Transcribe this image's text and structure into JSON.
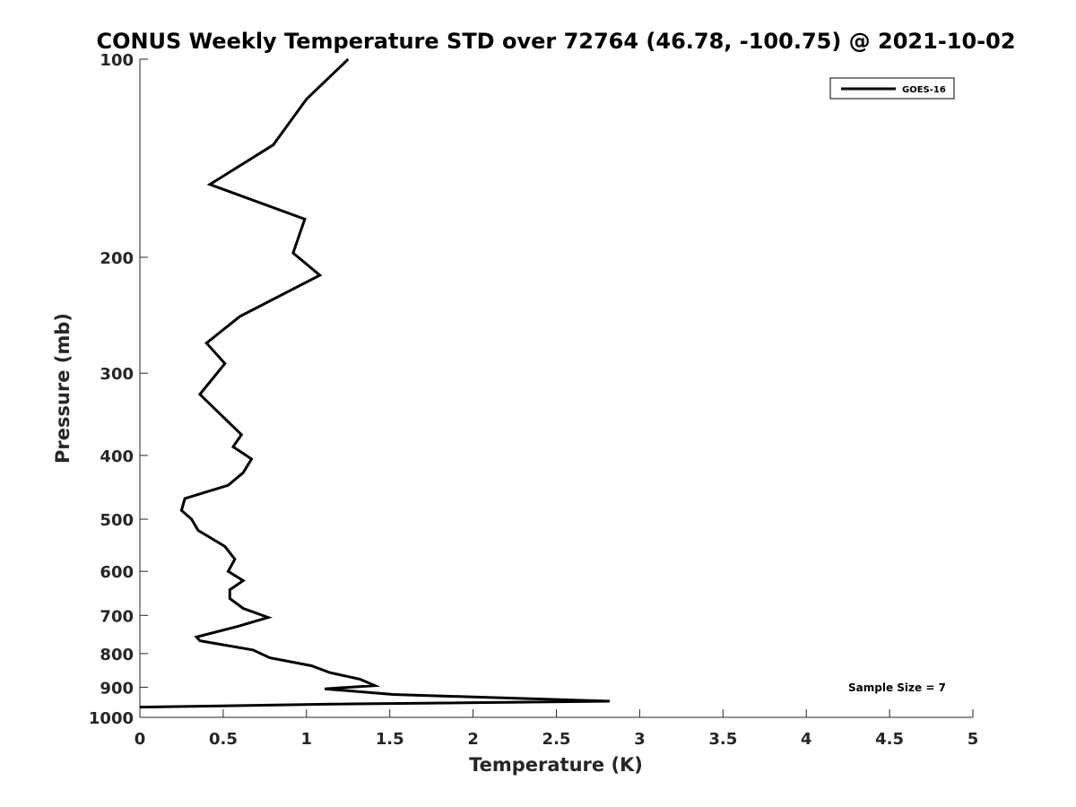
{
  "chart_data": {
    "type": "line",
    "title": "CONUS Weekly Temperature STD over 72764 (46.78, -100.75) @ 2021-10-02",
    "xlabel": "Temperature (K)",
    "ylabel": "Pressure (mb)",
    "xlim": [
      0,
      5
    ],
    "ylim": [
      100,
      1000
    ],
    "y_scale": "log",
    "y_reversed": true,
    "x_ticks": [
      "0",
      "0.5",
      "1",
      "1.5",
      "2",
      "2.5",
      "3",
      "3.5",
      "4",
      "4.5",
      "5"
    ],
    "x_tick_values": [
      0,
      0.5,
      1,
      1.5,
      2,
      2.5,
      3,
      3.5,
      4,
      4.5,
      5
    ],
    "y_ticks": [
      "100",
      "200",
      "300",
      "400",
      "500",
      "600",
      "700",
      "800",
      "900",
      "1000"
    ],
    "y_tick_values": [
      100,
      200,
      300,
      400,
      500,
      600,
      700,
      800,
      900,
      1000
    ],
    "grid": false,
    "legend_position": "top-right",
    "series": [
      {
        "name": "GOES-16",
        "color": "#000000",
        "x": [
          1.25,
          1.0,
          0.8,
          0.42,
          0.99,
          0.92,
          1.08,
          0.6,
          0.4,
          0.51,
          0.36,
          0.61,
          0.56,
          0.67,
          0.62,
          0.53,
          0.27,
          0.25,
          0.31,
          0.35,
          0.51,
          0.57,
          0.53,
          0.62,
          0.54,
          0.54,
          0.62,
          0.77,
          0.59,
          0.34,
          0.36,
          0.68,
          0.78,
          1.03,
          1.14,
          1.32,
          1.41,
          1.11,
          1.52,
          2.82,
          1.15,
          0.0
        ],
        "y": [
          100,
          115,
          135,
          155,
          175,
          197,
          213,
          246,
          270,
          290,
          323,
          372,
          388,
          405,
          425,
          444,
          465,
          485,
          500,
          520,
          550,
          575,
          600,
          620,
          640,
          660,
          683,
          705,
          727,
          755,
          765,
          790,
          812,
          835,
          855,
          875,
          895,
          905,
          923,
          945,
          955,
          965
        ]
      }
    ],
    "annotations": [
      {
        "text": "Sample Size = 7"
      }
    ]
  }
}
